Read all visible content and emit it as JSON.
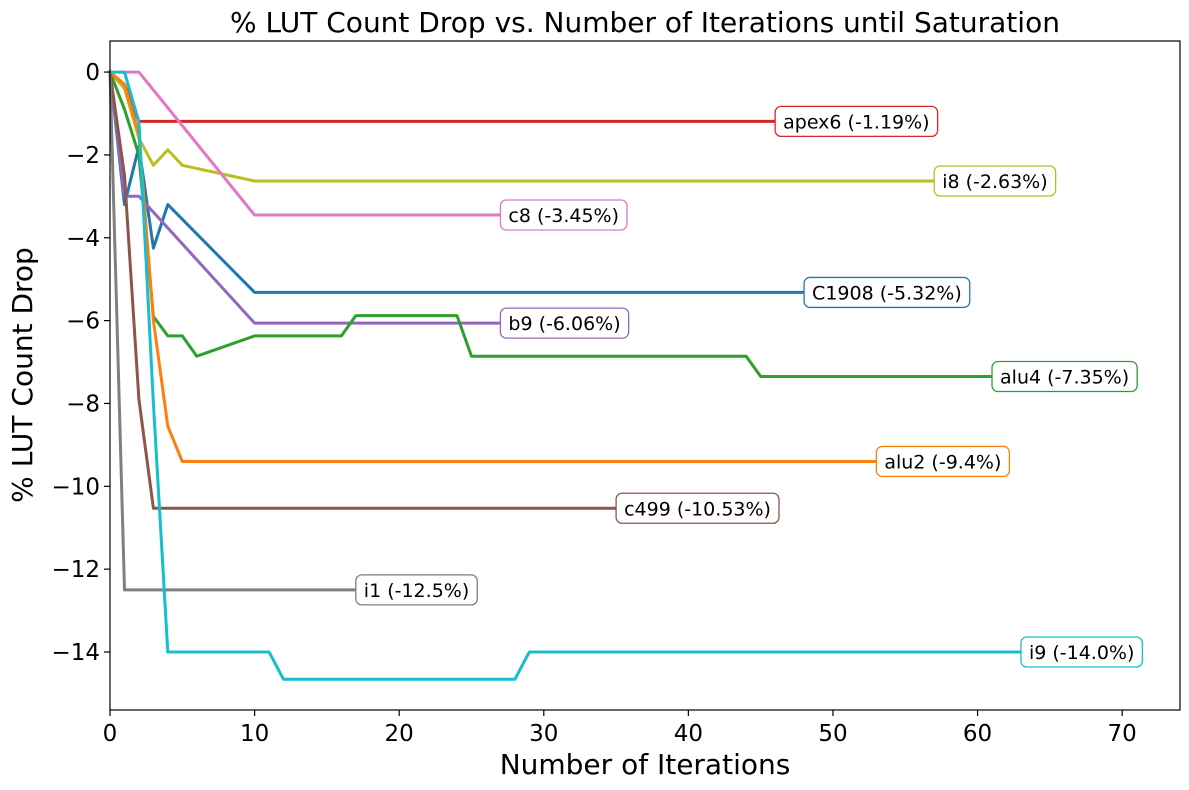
{
  "chart_data": {
    "type": "line",
    "title": "% LUT Count Drop vs. Number of Iterations until Saturation",
    "xlabel": "Number of Iterations",
    "ylabel": "% LUT Count Drop",
    "xlim": [
      0,
      74
    ],
    "ylim": [
      -15.4,
      0.75
    ],
    "xticks": [
      0,
      10,
      20,
      30,
      40,
      50,
      60,
      70
    ],
    "yticks": [
      0,
      -2,
      -4,
      -6,
      -8,
      -10,
      -12,
      -14
    ],
    "xtick_labels": [
      "0",
      "10",
      "20",
      "30",
      "40",
      "50",
      "60",
      "70"
    ],
    "ytick_labels": [
      "0",
      "−2",
      "−4",
      "−6",
      "−8",
      "−10",
      "−12",
      "−14"
    ],
    "grid": false,
    "series": [
      {
        "name": "apex6",
        "color": "#d62728",
        "label": "apex6 (-1.19%)",
        "points": [
          [
            0,
            0
          ],
          [
            1,
            -0.3
          ],
          [
            2,
            -1.19
          ],
          [
            46,
            -1.19
          ]
        ]
      },
      {
        "name": "i8",
        "color": "#bcbd22",
        "label": "i8 (-2.63%)",
        "points": [
          [
            0,
            0
          ],
          [
            1,
            -0.4
          ],
          [
            2,
            -1.6
          ],
          [
            3,
            -2.25
          ],
          [
            4,
            -1.88
          ],
          [
            5,
            -2.25
          ],
          [
            10,
            -2.63
          ],
          [
            57,
            -2.63
          ]
        ]
      },
      {
        "name": "c8",
        "color": "#e377c2",
        "label": "c8 (-3.45%)",
        "points": [
          [
            0,
            0
          ],
          [
            2,
            0
          ],
          [
            10,
            -3.45
          ],
          [
            27,
            -3.45
          ]
        ]
      },
      {
        "name": "C1908",
        "color": "#1f77b4",
        "label": "C1908 (-5.32%)",
        "points": [
          [
            0,
            0
          ],
          [
            1,
            -3.2
          ],
          [
            2,
            -1.8
          ],
          [
            3,
            -4.25
          ],
          [
            4,
            -3.2
          ],
          [
            10,
            -5.32
          ],
          [
            48,
            -5.32
          ]
        ]
      },
      {
        "name": "b9",
        "color": "#9467bd",
        "label": "b9 (-6.06%)",
        "points": [
          [
            0,
            0
          ],
          [
            1,
            -3.0
          ],
          [
            2,
            -3.0
          ],
          [
            10,
            -6.06
          ],
          [
            27,
            -6.06
          ]
        ]
      },
      {
        "name": "alu4",
        "color": "#2ca02c",
        "label": "alu4 (-7.35%)",
        "points": [
          [
            0,
            0
          ],
          [
            1,
            -0.9
          ],
          [
            2,
            -2.0
          ],
          [
            3,
            -5.9
          ],
          [
            4,
            -6.37
          ],
          [
            5,
            -6.37
          ],
          [
            6,
            -6.86
          ],
          [
            10,
            -6.37
          ],
          [
            16,
            -6.37
          ],
          [
            17,
            -5.88
          ],
          [
            24,
            -5.88
          ],
          [
            25,
            -6.86
          ],
          [
            44,
            -6.86
          ],
          [
            45,
            -7.35
          ],
          [
            61,
            -7.35
          ]
        ]
      },
      {
        "name": "alu2",
        "color": "#ff7f0e",
        "label": "alu2 (-9.4%)",
        "points": [
          [
            0,
            0
          ],
          [
            1,
            -0.3
          ],
          [
            2,
            -1.5
          ],
          [
            3,
            -6.0
          ],
          [
            4,
            -8.55
          ],
          [
            5,
            -9.4
          ],
          [
            53,
            -9.4
          ]
        ]
      },
      {
        "name": "c499",
        "color": "#8c564b",
        "label": "c499 (-10.53%)",
        "points": [
          [
            0,
            0
          ],
          [
            1,
            -2.5
          ],
          [
            2,
            -7.9
          ],
          [
            3,
            -10.53
          ],
          [
            35,
            -10.53
          ]
        ]
      },
      {
        "name": "i1",
        "color": "#7f7f7f",
        "label": "i1 (-12.5%)",
        "points": [
          [
            0,
            0
          ],
          [
            1,
            -12.5
          ],
          [
            17,
            -12.5
          ]
        ]
      },
      {
        "name": "i9",
        "color": "#17becf",
        "label": "i9 (-14.0%)",
        "points": [
          [
            0,
            0
          ],
          [
            1,
            0
          ],
          [
            2,
            -1.2
          ],
          [
            3,
            -8.0
          ],
          [
            4,
            -14.0
          ],
          [
            11,
            -14.0
          ],
          [
            12,
            -14.66
          ],
          [
            28,
            -14.66
          ],
          [
            29,
            -14.0
          ],
          [
            63,
            -14.0
          ]
        ]
      }
    ]
  }
}
